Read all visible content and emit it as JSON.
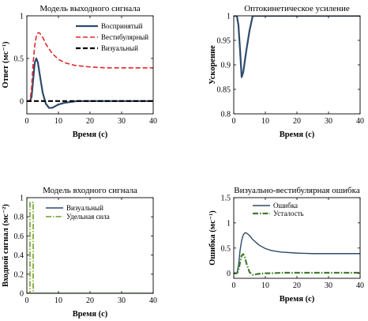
{
  "chart_data": [
    {
      "type": "line",
      "title": "Модель выходного сигнала",
      "xlabel": "Время (с)",
      "ylabel": "Ответ (мс⁻¹)",
      "xlim": [
        0,
        40
      ],
      "ylim": [
        -0.15,
        1.0
      ],
      "xticks": [
        "0",
        "10",
        "20",
        "30",
        "40"
      ],
      "yticks": [
        "0",
        "0.5",
        "1"
      ],
      "ytick_values": [
        0,
        0.5,
        1
      ],
      "xtick_values": [
        0,
        10,
        20,
        30,
        40
      ],
      "grid": false,
      "legend_position": "top-right",
      "series": [
        {
          "name": "Воспринятый",
          "color": "#2d4a6b",
          "style": "solid",
          "width": 2.2,
          "x": [
            0,
            1,
            1.5,
            2,
            2.5,
            3,
            3.5,
            4,
            5,
            6,
            7,
            8,
            9,
            10,
            12,
            14,
            16,
            18,
            20,
            25,
            30,
            35,
            40
          ],
          "y": [
            0,
            0,
            0.05,
            0.25,
            0.45,
            0.5,
            0.45,
            0.33,
            0.1,
            -0.03,
            -0.08,
            -0.08,
            -0.06,
            -0.04,
            -0.02,
            -0.01,
            0,
            0,
            0,
            0,
            0,
            0,
            0
          ]
        },
        {
          "name": "Вестибулярный",
          "color": "#e0282c",
          "style": "dashed",
          "width": 1.6,
          "x": [
            0,
            1,
            1.5,
            2,
            2.5,
            3,
            3.5,
            4,
            5,
            6,
            8,
            10,
            12,
            15,
            20,
            25,
            30,
            35,
            40
          ],
          "y": [
            0,
            0,
            0.15,
            0.45,
            0.65,
            0.76,
            0.8,
            0.8,
            0.75,
            0.67,
            0.56,
            0.49,
            0.45,
            0.42,
            0.4,
            0.39,
            0.39,
            0.39,
            0.39
          ]
        },
        {
          "name": "Визуальный",
          "color": "#000000",
          "style": "dashed",
          "width": 2.2,
          "x": [
            0,
            40
          ],
          "y": [
            0,
            0
          ]
        }
      ]
    },
    {
      "type": "line",
      "title": "Оптокинетическое усиление",
      "xlabel": "Время (с)",
      "ylabel": "Ускорение",
      "xlim": [
        0,
        40
      ],
      "ylim": [
        0.8,
        1.0
      ],
      "xticks": [
        "0",
        "10",
        "20",
        "30",
        "40"
      ],
      "yticks": [
        "0.8",
        "0.85",
        "0.9",
        "0.95",
        "1"
      ],
      "ytick_values": [
        0.8,
        0.85,
        0.9,
        0.95,
        1.0
      ],
      "xtick_values": [
        0,
        10,
        20,
        30,
        40
      ],
      "grid": false,
      "series": [
        {
          "color": "#2d4a6b",
          "style": "solid",
          "width": 2.2,
          "x": [
            0,
            1,
            1.5,
            2,
            2.5,
            3,
            4,
            5,
            6,
            8,
            10,
            20,
            30,
            40
          ],
          "y": [
            1.0,
            1.0,
            0.98,
            0.93,
            0.875,
            0.885,
            0.93,
            0.97,
            1.0,
            1.0,
            1.0,
            1.0,
            1.0,
            1.0
          ]
        }
      ]
    },
    {
      "type": "line",
      "title": "Модель входного сигнала",
      "xlabel": "Время (с)",
      "ylabel": "Входной сигнал (мс⁻²)",
      "xlim": [
        0,
        40
      ],
      "ylim": [
        0,
        1.0
      ],
      "xticks": [
        "0",
        "10",
        "20",
        "30",
        "40"
      ],
      "yticks": [
        "0",
        "0.2",
        "0.4",
        "0.6",
        "0.8",
        "1"
      ],
      "ytick_values": [
        0,
        0.2,
        0.4,
        0.6,
        0.8,
        1.0
      ],
      "xtick_values": [
        0,
        10,
        20,
        30,
        40
      ],
      "grid": false,
      "legend_position": "top-right",
      "series": [
        {
          "name": "Визуальный",
          "color": "#2d4a6b",
          "style": "solid",
          "width": 1.4,
          "x": [
            0,
            40
          ],
          "y": [
            0,
            0
          ]
        },
        {
          "name": "Удельная сила",
          "color": "#7fab3c",
          "style": "dashdot",
          "width": 1.8,
          "x": [
            0,
            1,
            1,
            2,
            2,
            40
          ],
          "y": [
            0,
            0,
            0.95,
            0.95,
            0,
            0
          ]
        }
      ]
    },
    {
      "type": "line",
      "title": "Визуально-вестибулярная ошибка",
      "xlabel": "Время (с)",
      "ylabel": "Ошибка (мс⁻¹)",
      "xlim": [
        0,
        40
      ],
      "ylim": [
        -0.1,
        1.5
      ],
      "xticks": [
        "0",
        "10",
        "20",
        "30",
        "40"
      ],
      "yticks": [
        "0",
        "0.5",
        "1",
        "1.5"
      ],
      "ytick_values": [
        0,
        0.5,
        1.0,
        1.5
      ],
      "xtick_values": [
        0,
        10,
        20,
        30,
        40
      ],
      "grid": false,
      "legend_position": "top-right",
      "series": [
        {
          "name": "Ошибка",
          "color": "#2d4a6b",
          "style": "solid",
          "width": 1.4,
          "x": [
            0,
            1,
            1.5,
            2,
            2.5,
            3,
            3.5,
            4,
            5,
            6,
            8,
            10,
            12,
            15,
            20,
            25,
            30,
            35,
            40
          ],
          "y": [
            0,
            0,
            0.15,
            0.45,
            0.65,
            0.76,
            0.8,
            0.8,
            0.75,
            0.67,
            0.56,
            0.49,
            0.45,
            0.42,
            0.4,
            0.39,
            0.39,
            0.39,
            0.39
          ]
        },
        {
          "name": "Усталость",
          "color": "#3f7d2a",
          "style": "dashdot",
          "width": 2.2,
          "x": [
            0,
            1,
            1.5,
            2,
            2.5,
            3,
            3.5,
            4,
            5,
            6,
            7,
            8,
            10,
            12,
            15,
            20,
            25,
            30,
            35,
            40
          ],
          "y": [
            0,
            0,
            0.05,
            0.22,
            0.35,
            0.38,
            0.32,
            0.2,
            0.02,
            -0.03,
            -0.02,
            -0.01,
            0,
            0,
            0.01,
            0.01,
            0.01,
            0.01,
            0.01,
            0.01
          ]
        }
      ]
    }
  ]
}
